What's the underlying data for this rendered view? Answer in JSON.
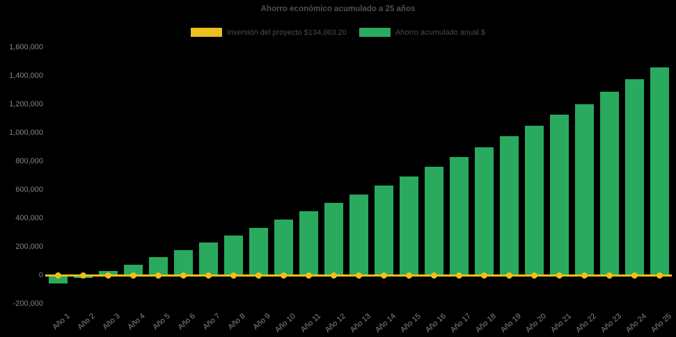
{
  "title": "Ahorro económico acumulado a 25 años",
  "colors": {
    "background": "#000000",
    "bar_green": "#2aaa5f",
    "line_gold": "#ecc01e",
    "title_text": "#4f4f4f",
    "axis_text": "#868686"
  },
  "legend": {
    "investment_label": "Inversión del proyecto $134,003.20",
    "savings_label": "Ahorro acumulado anual $"
  },
  "chart_data": {
    "type": "bar",
    "title": "Ahorro económico acumulado a 25 años",
    "xlabel": "",
    "ylabel": "",
    "ylim": [
      -200000,
      1600000
    ],
    "ytick_step": 200000,
    "grid": false,
    "legend_position": "top",
    "categories": [
      "Año 1",
      "Año 2",
      "Año 3",
      "Año 4",
      "Año 5",
      "Año 6",
      "Año 7",
      "Año 8",
      "Año 9",
      "Año 10",
      "Año 11",
      "Año 12",
      "Año 13",
      "Año 14",
      "Año 15",
      "Año 16",
      "Año 17",
      "Año 18",
      "Año 19",
      "Año 20",
      "Año 21",
      "Año 22",
      "Año 23",
      "Año 24",
      "Año 25"
    ],
    "yticks": [
      {
        "value": 1600000,
        "label": "1,600,000"
      },
      {
        "value": 1400000,
        "label": "1,400,000"
      },
      {
        "value": 1200000,
        "label": "1,200,000"
      },
      {
        "value": 1000000,
        "label": "1,000,000"
      },
      {
        "value": 800000,
        "label": "800,000"
      },
      {
        "value": 600000,
        "label": "600,000"
      },
      {
        "value": 400000,
        "label": "400,000"
      },
      {
        "value": 200000,
        "label": "200,000"
      },
      {
        "value": 0,
        "label": "0"
      },
      {
        "value": -200000,
        "label": "-200,000"
      }
    ],
    "series": [
      {
        "name": "Inversión del proyecto $134,003.20",
        "type": "line",
        "color": "#ecc01e",
        "marker": "circle",
        "value": 0
      },
      {
        "name": "Ahorro acumulado anual $",
        "type": "bar",
        "color": "#2aaa5f",
        "values": [
          -60000,
          -20000,
          30000,
          75000,
          125000,
          175000,
          230000,
          280000,
          330000,
          390000,
          450000,
          505000,
          565000,
          630000,
          695000,
          760000,
          830000,
          900000,
          975000,
          1050000,
          1125000,
          1200000,
          1290000,
          1375000,
          1460000
        ]
      }
    ]
  }
}
